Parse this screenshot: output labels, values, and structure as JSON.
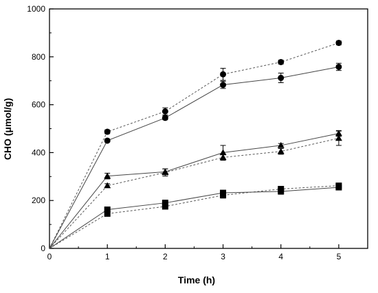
{
  "chart_data": {
    "type": "line",
    "xlabel": "Time (h)",
    "ylabel": "CHO (μmol/g)",
    "xlim": [
      0,
      5.5
    ],
    "ylim": [
      0,
      1000
    ],
    "xticks": [
      "0",
      "1",
      "2",
      "3",
      "4",
      "5"
    ],
    "yticks": [
      "0",
      "200",
      "400",
      "600",
      "800",
      "1000"
    ],
    "x": [
      0,
      1,
      2,
      3,
      4,
      5
    ],
    "grid": false,
    "legend": "none",
    "series": [
      {
        "marker": "circle",
        "line": "dashed",
        "values": [
          0,
          487,
          572,
          727,
          778,
          858
        ],
        "errors": [
          0,
          8,
          15,
          25,
          8,
          8
        ]
      },
      {
        "marker": "circle",
        "line": "solid",
        "values": [
          0,
          450,
          545,
          683,
          712,
          758
        ],
        "errors": [
          0,
          6,
          8,
          15,
          20,
          15
        ]
      },
      {
        "marker": "triangle",
        "line": "solid",
        "values": [
          0,
          302,
          320,
          400,
          430,
          480
        ],
        "errors": [
          0,
          12,
          12,
          30,
          8,
          12
        ]
      },
      {
        "marker": "triangle",
        "line": "dashed",
        "values": [
          0,
          262,
          317,
          380,
          405,
          460
        ],
        "errors": [
          0,
          8,
          15,
          12,
          12,
          30
        ]
      },
      {
        "marker": "square",
        "line": "dashed",
        "values": [
          0,
          145,
          175,
          222,
          248,
          262
        ],
        "errors": [
          0,
          8,
          8,
          12,
          8,
          10
        ]
      },
      {
        "marker": "square",
        "line": "solid",
        "values": [
          0,
          162,
          190,
          232,
          238,
          255
        ],
        "errors": [
          0,
          10,
          12,
          10,
          12,
          10
        ]
      }
    ]
  }
}
